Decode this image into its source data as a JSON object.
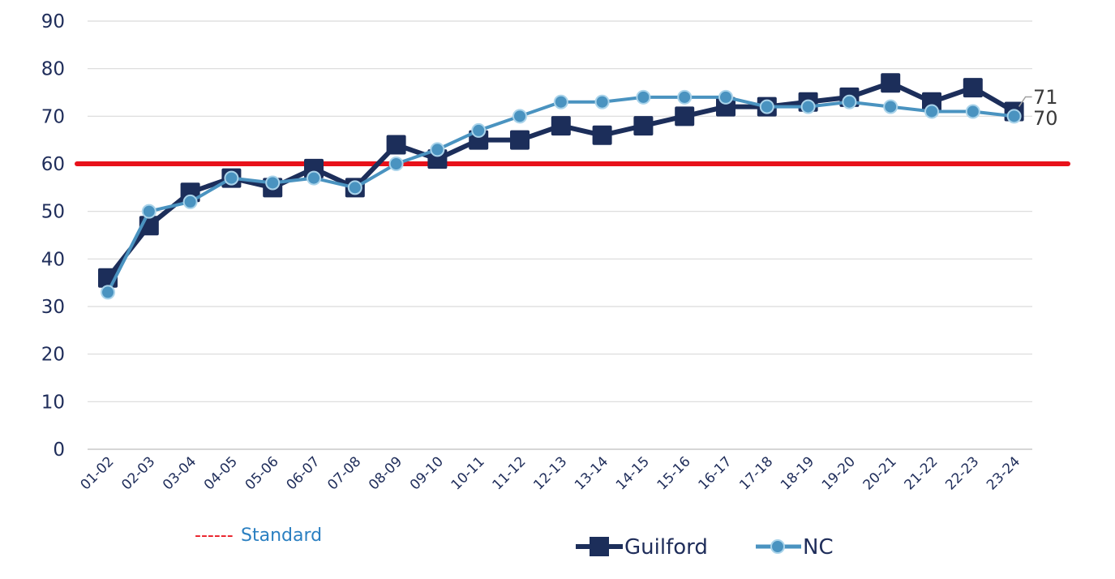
{
  "chart_data": {
    "type": "line",
    "categories": [
      "01-02",
      "02-03",
      "03-04",
      "04-05",
      "05-06",
      "06-07",
      "07-08",
      "08-09",
      "09-10",
      "10-11",
      "11-12",
      "12-13",
      "13-14",
      "14-15",
      "15-16",
      "16-17",
      "17-18",
      "18-19",
      "19-20",
      "20-21",
      "21-22",
      "22-23",
      "23-24"
    ],
    "series": [
      {
        "name": "Guilford",
        "color": "#1c2e5a",
        "marker": "square",
        "values": [
          36,
          47,
          54,
          57,
          55,
          59,
          55,
          64,
          61,
          65,
          65,
          68,
          66,
          68,
          70,
          72,
          72,
          73,
          74,
          77,
          73,
          76,
          71
        ]
      },
      {
        "name": "NC",
        "color": "#4a93c0",
        "marker": "circle",
        "values": [
          33,
          50,
          52,
          57,
          56,
          57,
          55,
          60,
          63,
          67,
          70,
          73,
          73,
          74,
          74,
          74,
          72,
          72,
          73,
          72,
          71,
          71,
          70
        ]
      }
    ],
    "standard": {
      "value": 60,
      "label": "Standard",
      "dash_label": "------",
      "color": "#e8111a"
    },
    "end_labels": [
      "71",
      "70"
    ],
    "y_ticks": [
      "0",
      "10",
      "20",
      "30",
      "40",
      "50",
      "60",
      "70",
      "80",
      "90"
    ],
    "ylim": [
      0,
      90
    ],
    "grid": true,
    "legend_placement": "bottom",
    "title": "",
    "xlabel": "",
    "ylabel": ""
  }
}
